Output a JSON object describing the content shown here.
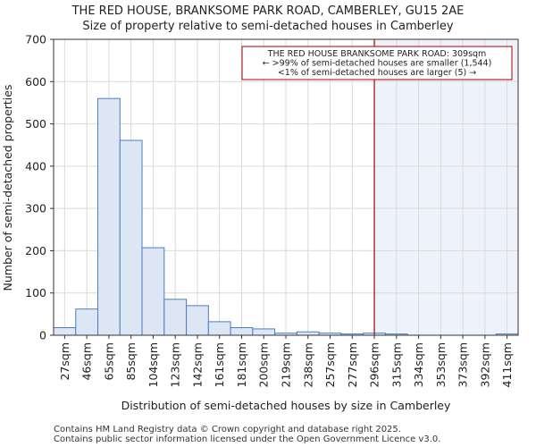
{
  "chart_data": {
    "type": "bar",
    "title": "THE RED HOUSE, BRANKSOME PARK ROAD, CAMBERLEY, GU15 2AE",
    "subtitle": "Size of property relative to semi-detached houses in Camberley",
    "xlabel": "Distribution of semi-detached houses by size in Camberley",
    "ylabel": "Number of semi-detached properties",
    "ylim": [
      0,
      700
    ],
    "yticks": [
      0,
      100,
      200,
      300,
      400,
      500,
      600,
      700
    ],
    "categories": [
      "27sqm",
      "46sqm",
      "65sqm",
      "85sqm",
      "104sqm",
      "123sqm",
      "142sqm",
      "161sqm",
      "181sqm",
      "200sqm",
      "219sqm",
      "238sqm",
      "257sqm",
      "277sqm",
      "296sqm",
      "315sqm",
      "334sqm",
      "353sqm",
      "373sqm",
      "392sqm",
      "411sqm"
    ],
    "values": [
      18,
      62,
      560,
      461,
      207,
      85,
      70,
      32,
      18,
      15,
      5,
      8,
      5,
      3,
      5,
      3,
      0,
      0,
      0,
      0,
      3
    ],
    "bar_color": "#dce6f4",
    "bar_edge_color": "#4a7fc1",
    "marker": {
      "value_index": 14.5,
      "label": "THE RED HOUSE BRANKSOME PARK ROAD: 309sqm",
      "line_color": "#aa0000"
    },
    "highlight_color": "#eef3fb",
    "annotation": {
      "line1": "THE RED HOUSE BRANKSOME PARK ROAD: 309sqm",
      "line2": "← >99% of semi-detached houses are smaller (1,544)",
      "line3": "<1% of semi-detached houses are larger (5) →"
    },
    "grid": true
  },
  "footer": {
    "line1": "Contains HM Land Registry data © Crown copyright and database right 2025.",
    "line2": "Contains public sector information licensed under the Open Government Licence v3.0."
  }
}
